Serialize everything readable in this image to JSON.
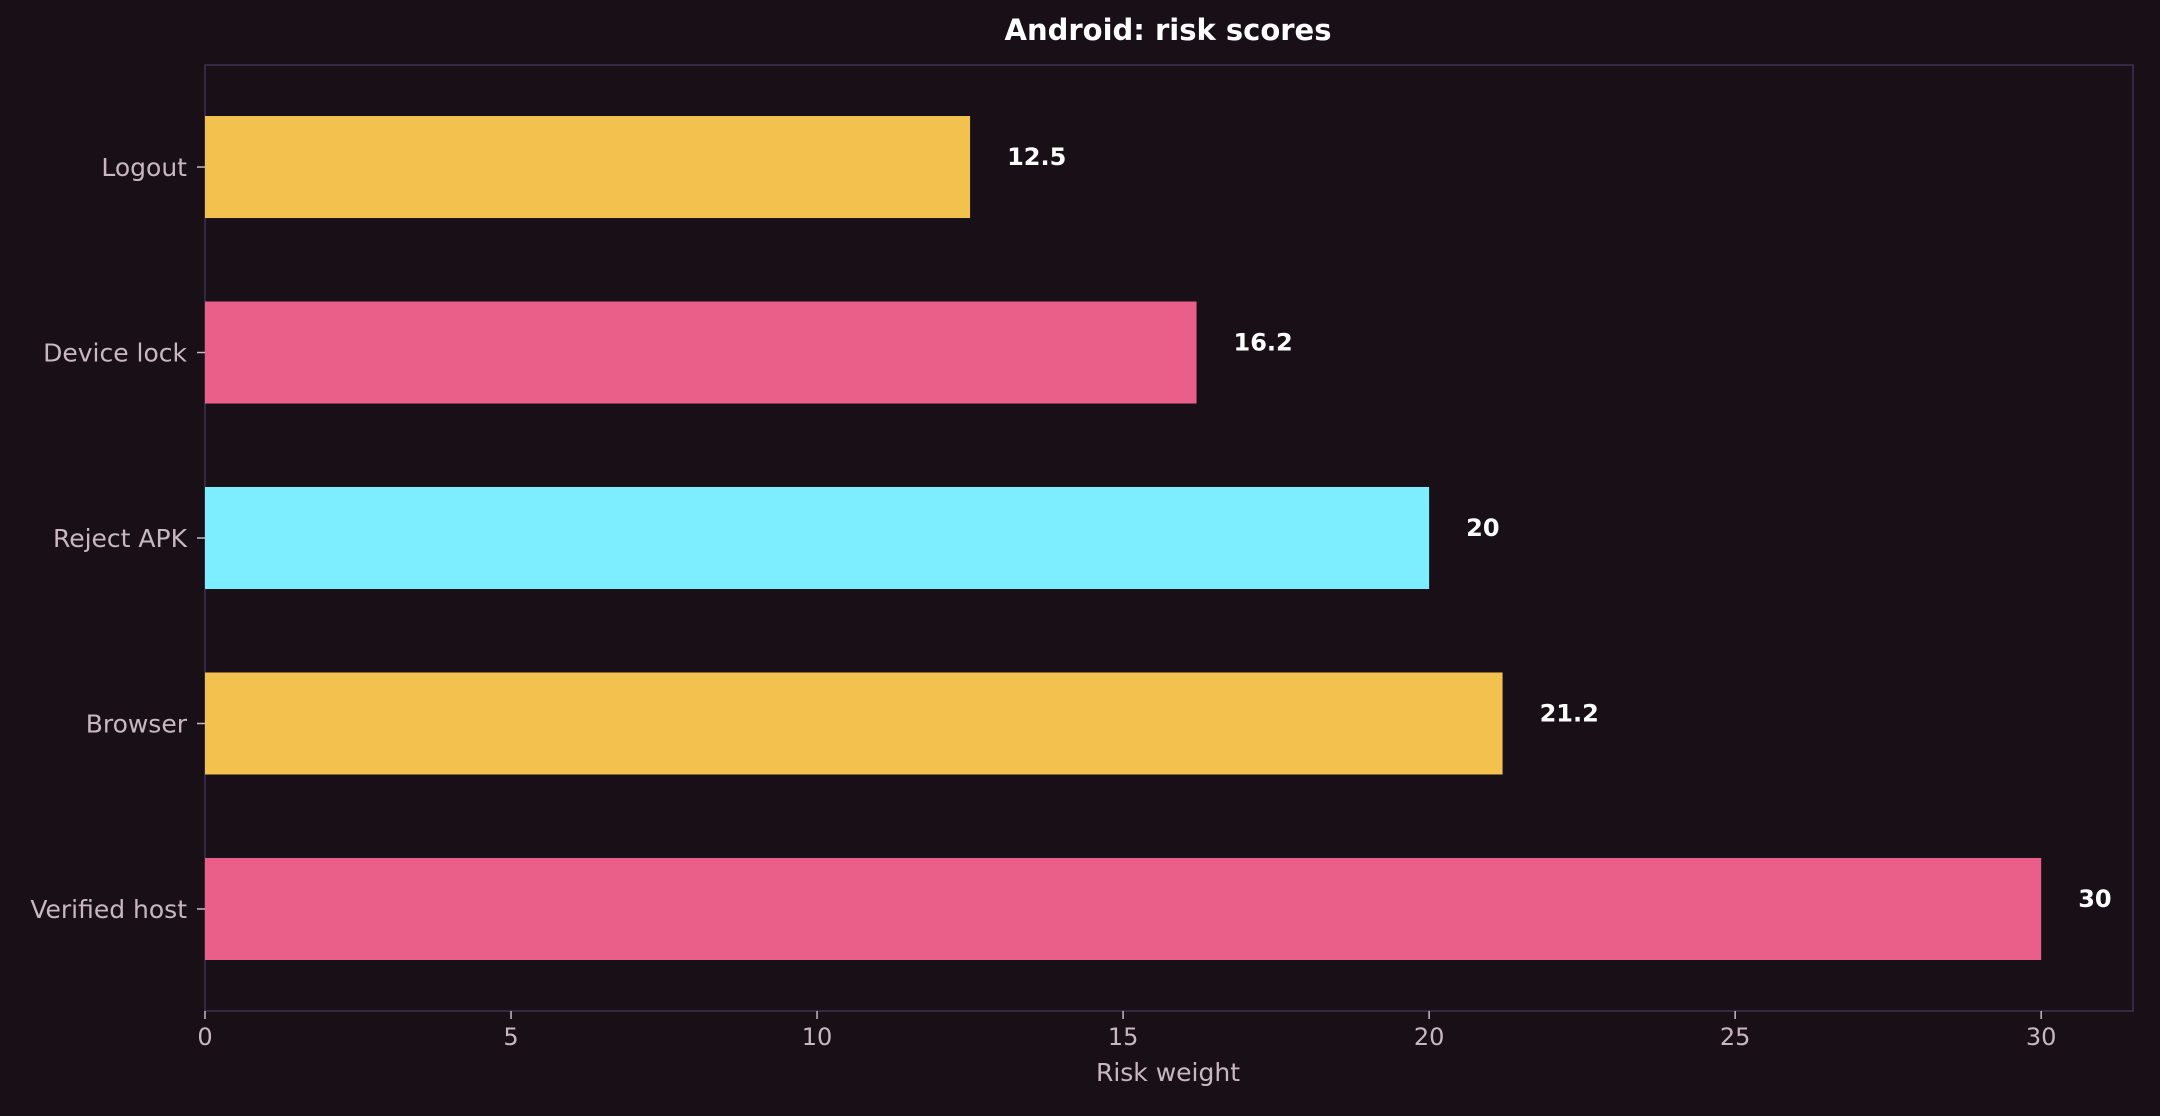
{
  "chart_data": {
    "type": "bar",
    "orientation": "horizontal",
    "title": "Android: risk scores",
    "xlabel": "Risk weight",
    "ylabel": "",
    "categories": [
      "Logout",
      "Device lock",
      "Reject APK",
      "Browser",
      "Verified host"
    ],
    "values": [
      12.5,
      16.2,
      20,
      21.2,
      30
    ],
    "value_labels": [
      "12.5",
      "16.2",
      "20",
      "21.2",
      "30"
    ],
    "bar_colors": [
      "#f2c14e",
      "#e95f8a",
      "#7deeff",
      "#f2c14e",
      "#e95f8a"
    ],
    "xlim": [
      0,
      31.5
    ],
    "xticks": [
      0,
      5,
      10,
      15,
      20,
      25,
      30
    ],
    "grid": false,
    "legend": "none"
  }
}
